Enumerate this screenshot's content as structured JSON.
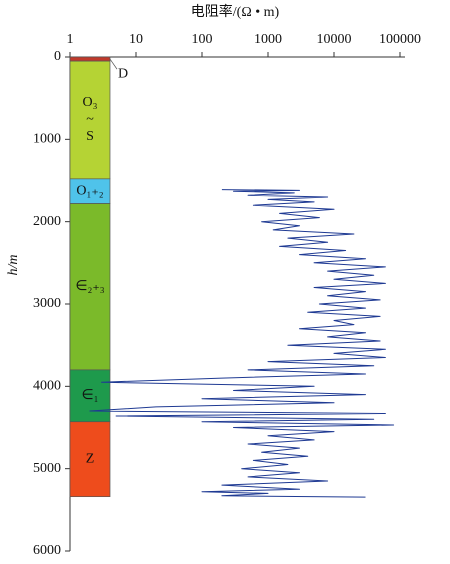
{
  "chart_data": {
    "type": "line",
    "title": "电阻率/(Ω • m)",
    "y_label": "h/m",
    "x_scale": "log",
    "xlim": [
      1,
      100000
    ],
    "xticks": [
      1,
      10,
      100,
      1000,
      10000,
      100000
    ],
    "ylim": [
      0,
      6000
    ],
    "yticks": [
      0,
      1000,
      2000,
      3000,
      4000,
      5000,
      6000
    ],
    "y_inverted": true,
    "layers": [
      {
        "label": [
          "D"
        ],
        "top": 0,
        "bottom": 50,
        "color": "#c0392b"
      },
      {
        "label": [
          "O₃",
          "~",
          "S"
        ],
        "top": 50,
        "bottom": 1480,
        "color": "#b5d334"
      },
      {
        "label": [
          "O₁₊₂"
        ],
        "top": 1480,
        "bottom": 1780,
        "color": "#4fc3ea"
      },
      {
        "label": [
          "∈₂₊₃"
        ],
        "top": 1780,
        "bottom": 3800,
        "color": "#7bba2a"
      },
      {
        "label": [
          "∈₁"
        ],
        "top": 3800,
        "bottom": 4430,
        "color": "#1e9a4c"
      },
      {
        "label": [
          "Z"
        ],
        "top": 4430,
        "bottom": 5340,
        "color": "#ee4c1c"
      }
    ],
    "series": [
      {
        "color": "#1f3a93",
        "x": [
          200,
          3000,
          300,
          2500,
          500,
          8000,
          1000,
          5000,
          600,
          10000,
          1500,
          6000,
          800,
          3000,
          1200,
          20000,
          2000,
          8000,
          1500,
          15000,
          3000,
          30000,
          5000,
          60000,
          8000,
          40000,
          10000,
          60000,
          5000,
          30000,
          8000,
          50000,
          6000,
          30000,
          4000,
          50000,
          10000,
          20000,
          3000,
          30000,
          8000,
          50000,
          2000,
          60000,
          10000,
          60000,
          1000,
          40000,
          500,
          30000,
          200,
          3,
          5000,
          300,
          30000,
          100,
          10000,
          20,
          2,
          60000,
          5,
          40000,
          100,
          80000,
          300,
          10000,
          1000,
          5000,
          500,
          3000,
          800,
          4000,
          600,
          2000,
          400,
          3000,
          500,
          8000,
          200,
          3000,
          100,
          1000,
          200,
          30000
        ],
        "y": [
          1610,
          1620,
          1630,
          1650,
          1680,
          1700,
          1730,
          1760,
          1800,
          1850,
          1900,
          1950,
          2000,
          2050,
          2100,
          2150,
          2200,
          2250,
          2300,
          2350,
          2400,
          2450,
          2500,
          2550,
          2600,
          2650,
          2700,
          2750,
          2800,
          2850,
          2900,
          2950,
          3000,
          3050,
          3100,
          3150,
          3200,
          3250,
          3300,
          3350,
          3400,
          3450,
          3500,
          3550,
          3600,
          3650,
          3700,
          3750,
          3800,
          3850,
          3900,
          3950,
          4000,
          4050,
          4100,
          4150,
          4200,
          4250,
          4300,
          4330,
          4360,
          4400,
          4430,
          4470,
          4500,
          4550,
          4600,
          4650,
          4700,
          4750,
          4800,
          4850,
          4900,
          4950,
          5000,
          5050,
          5100,
          5150,
          5200,
          5250,
          5280,
          5300,
          5330,
          5345
        ]
      }
    ]
  }
}
